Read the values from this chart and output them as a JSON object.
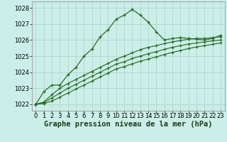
{
  "background_color": "#cceee8",
  "grid_color": "#aad8cc",
  "line_color": "#2d6a2d",
  "marker_color": "#2d6a2d",
  "xlabel": "Graphe pression niveau de la mer (hPa)",
  "xlabel_fontsize": 7.5,
  "tick_fontsize": 6.0,
  "xlim": [
    -0.5,
    23.5
  ],
  "ylim": [
    1021.6,
    1028.4
  ],
  "yticks": [
    1022,
    1023,
    1024,
    1025,
    1026,
    1027,
    1028
  ],
  "xticks": [
    0,
    1,
    2,
    3,
    4,
    5,
    6,
    7,
    8,
    9,
    10,
    11,
    12,
    13,
    14,
    15,
    16,
    17,
    18,
    19,
    20,
    21,
    22,
    23
  ],
  "series1_x": [
    0,
    1,
    2,
    3,
    4,
    5,
    6,
    7,
    8,
    9,
    10,
    11,
    12,
    13,
    14,
    15,
    16,
    17,
    18,
    19,
    20,
    21,
    22,
    23
  ],
  "series1_y": [
    1022.0,
    1022.8,
    1023.2,
    1023.2,
    1023.85,
    1024.3,
    1025.0,
    1025.45,
    1026.2,
    1026.65,
    1027.3,
    1027.55,
    1027.9,
    1027.55,
    1027.1,
    1026.5,
    1026.0,
    1026.1,
    1026.15,
    1026.1,
    1026.05,
    1026.0,
    1026.1,
    1026.3
  ],
  "series2_x": [
    0,
    1,
    2,
    3,
    4,
    5,
    6,
    7,
    8,
    9,
    10,
    11,
    12,
    13,
    14,
    15,
    16,
    17,
    18,
    19,
    20,
    21,
    22,
    23
  ],
  "series2_y": [
    1022.0,
    1022.15,
    1022.6,
    1023.0,
    1023.3,
    1023.55,
    1023.8,
    1024.05,
    1024.3,
    1024.55,
    1024.8,
    1025.0,
    1025.2,
    1025.4,
    1025.55,
    1025.65,
    1025.78,
    1025.88,
    1025.97,
    1026.05,
    1026.1,
    1026.1,
    1026.15,
    1026.2
  ],
  "series3_x": [
    0,
    1,
    2,
    3,
    4,
    5,
    6,
    7,
    8,
    9,
    10,
    11,
    12,
    13,
    14,
    15,
    16,
    17,
    18,
    19,
    20,
    21,
    22,
    23
  ],
  "series3_y": [
    1022.0,
    1022.1,
    1022.4,
    1022.7,
    1023.0,
    1023.25,
    1023.5,
    1023.75,
    1024.0,
    1024.25,
    1024.5,
    1024.65,
    1024.85,
    1025.0,
    1025.15,
    1025.28,
    1025.42,
    1025.55,
    1025.65,
    1025.75,
    1025.82,
    1025.88,
    1025.95,
    1026.0
  ],
  "series4_x": [
    0,
    1,
    2,
    3,
    4,
    5,
    6,
    7,
    8,
    9,
    10,
    11,
    12,
    13,
    14,
    15,
    16,
    17,
    18,
    19,
    20,
    21,
    22,
    23
  ],
  "series4_y": [
    1022.0,
    1022.05,
    1022.2,
    1022.45,
    1022.7,
    1022.95,
    1023.2,
    1023.45,
    1023.7,
    1023.95,
    1024.2,
    1024.35,
    1024.52,
    1024.68,
    1024.82,
    1024.95,
    1025.1,
    1025.23,
    1025.35,
    1025.47,
    1025.57,
    1025.65,
    1025.73,
    1025.82
  ]
}
